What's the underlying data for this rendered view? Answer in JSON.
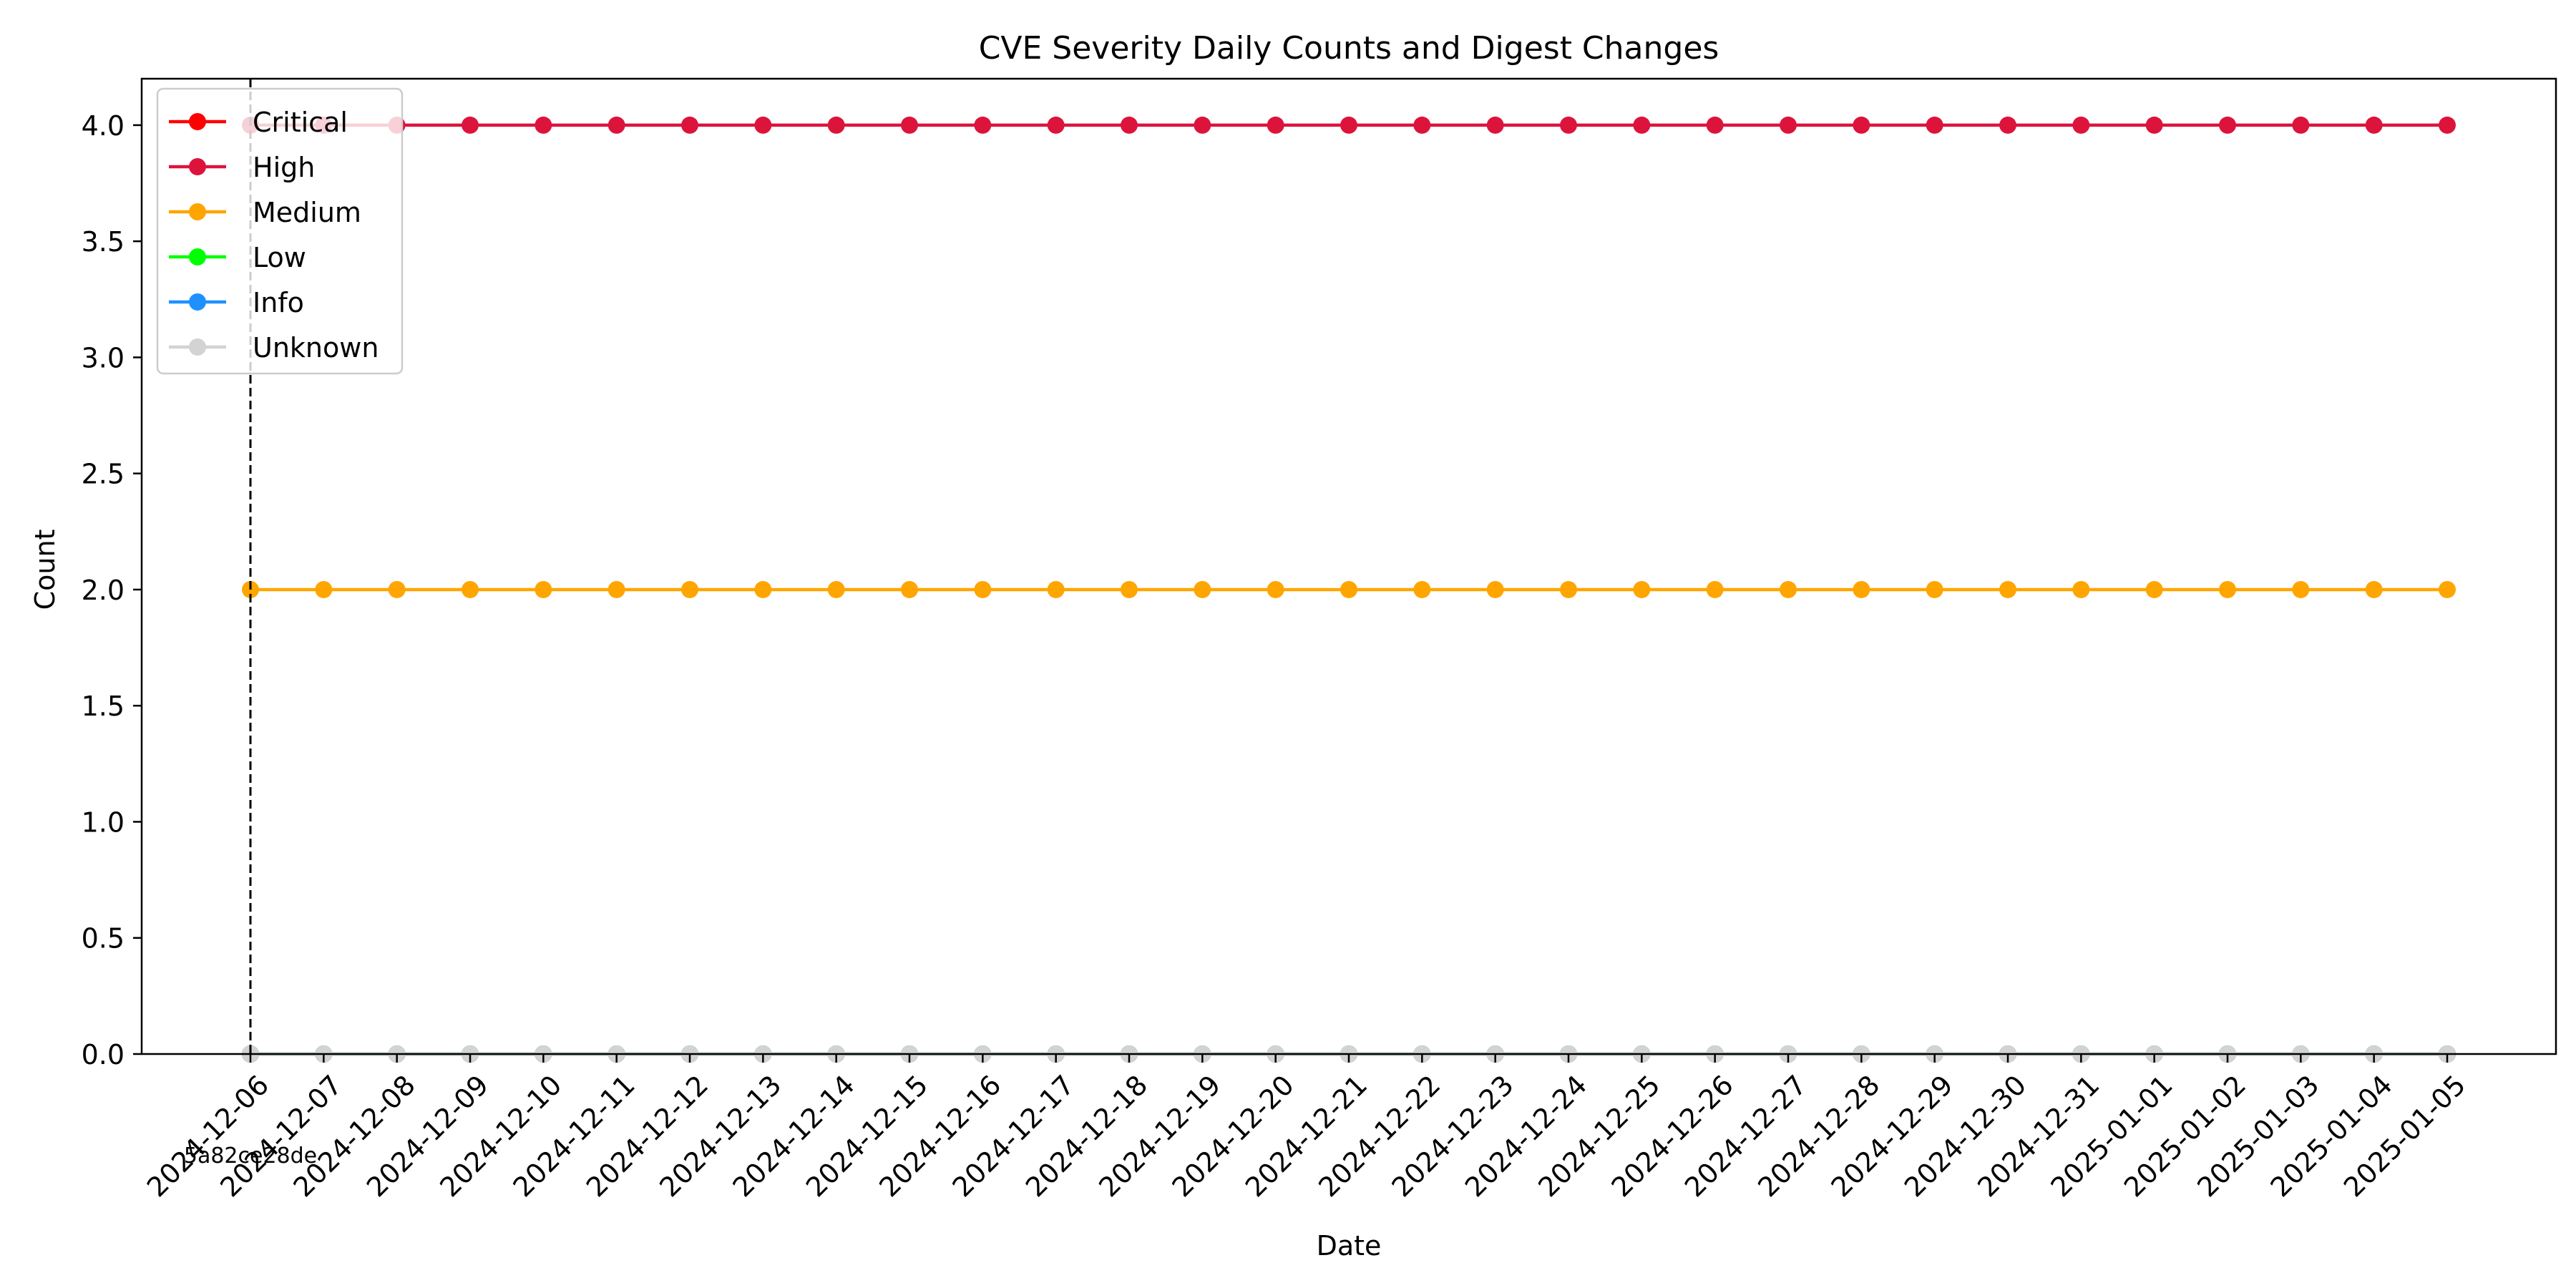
{
  "chart_data": {
    "type": "line",
    "title": "CVE Severity Daily Counts and Digest Changes",
    "xlabel": "Date",
    "ylabel": "Count",
    "ylim": [
      0,
      4.2
    ],
    "y_ticks": [
      "0.0",
      "0.5",
      "1.0",
      "1.5",
      "2.0",
      "2.5",
      "3.0",
      "3.5",
      "4.0"
    ],
    "grid": false,
    "legend_position": "top-left",
    "x": [
      "2024-12-06",
      "2024-12-07",
      "2024-12-08",
      "2024-12-09",
      "2024-12-10",
      "2024-12-11",
      "2024-12-12",
      "2024-12-13",
      "2024-12-14",
      "2024-12-15",
      "2024-12-16",
      "2024-12-17",
      "2024-12-18",
      "2024-12-19",
      "2024-12-20",
      "2024-12-21",
      "2024-12-22",
      "2024-12-23",
      "2024-12-24",
      "2024-12-25",
      "2024-12-26",
      "2024-12-27",
      "2024-12-28",
      "2024-12-29",
      "2024-12-30",
      "2024-12-31",
      "2025-01-01",
      "2025-01-02",
      "2025-01-03",
      "2025-01-04",
      "2025-01-05"
    ],
    "series": [
      {
        "name": "Critical",
        "color": "#ff0000",
        "values": [
          0,
          0,
          0,
          0,
          0,
          0,
          0,
          0,
          0,
          0,
          0,
          0,
          0,
          0,
          0,
          0,
          0,
          0,
          0,
          0,
          0,
          0,
          0,
          0,
          0,
          0,
          0,
          0,
          0,
          0,
          0
        ]
      },
      {
        "name": "High",
        "color": "#dc143c",
        "values": [
          4,
          4,
          4,
          4,
          4,
          4,
          4,
          4,
          4,
          4,
          4,
          4,
          4,
          4,
          4,
          4,
          4,
          4,
          4,
          4,
          4,
          4,
          4,
          4,
          4,
          4,
          4,
          4,
          4,
          4,
          4
        ]
      },
      {
        "name": "Medium",
        "color": "#ffa500",
        "values": [
          2,
          2,
          2,
          2,
          2,
          2,
          2,
          2,
          2,
          2,
          2,
          2,
          2,
          2,
          2,
          2,
          2,
          2,
          2,
          2,
          2,
          2,
          2,
          2,
          2,
          2,
          2,
          2,
          2,
          2,
          2
        ]
      },
      {
        "name": "Low",
        "color": "#00ff00",
        "values": [
          0,
          0,
          0,
          0,
          0,
          0,
          0,
          0,
          0,
          0,
          0,
          0,
          0,
          0,
          0,
          0,
          0,
          0,
          0,
          0,
          0,
          0,
          0,
          0,
          0,
          0,
          0,
          0,
          0,
          0,
          0
        ]
      },
      {
        "name": "Info",
        "color": "#1e90ff",
        "values": [
          0,
          0,
          0,
          0,
          0,
          0,
          0,
          0,
          0,
          0,
          0,
          0,
          0,
          0,
          0,
          0,
          0,
          0,
          0,
          0,
          0,
          0,
          0,
          0,
          0,
          0,
          0,
          0,
          0,
          0,
          0
        ]
      },
      {
        "name": "Unknown",
        "color": "#d3d3d3",
        "values": [
          0,
          0,
          0,
          0,
          0,
          0,
          0,
          0,
          0,
          0,
          0,
          0,
          0,
          0,
          0,
          0,
          0,
          0,
          0,
          0,
          0,
          0,
          0,
          0,
          0,
          0,
          0,
          0,
          0,
          0,
          0
        ]
      }
    ],
    "annotations": [
      {
        "x": "2024-12-06",
        "label": "5a82ce28de",
        "style": "dashed-vertical-line"
      }
    ]
  }
}
